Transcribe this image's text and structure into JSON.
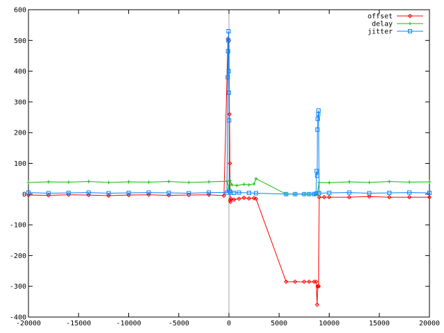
{
  "chart_data": {
    "type": "line",
    "title": "",
    "xlabel": "",
    "ylabel": "",
    "xlim": [
      -20000,
      20000
    ],
    "ylim": [
      -400,
      600
    ],
    "x_ticks": [
      -20000,
      -15000,
      -10000,
      -5000,
      0,
      5000,
      10000,
      15000,
      20000
    ],
    "y_ticks": [
      -400,
      -300,
      -200,
      -100,
      0,
      100,
      200,
      300,
      400,
      500,
      600
    ],
    "x_tick_labels": [
      "-20000",
      "-15000",
      "-10000",
      "-5000",
      "0",
      "5000",
      "10000",
      "15000",
      "20000"
    ],
    "y_tick_labels": [
      "-400",
      "-300",
      "-200",
      "-100",
      "0",
      "100",
      "200",
      "300",
      "400",
      "500",
      "600"
    ],
    "grid": false,
    "zero_axis_x": 0,
    "legend_position": "top-right",
    "series": [
      {
        "name": "offset",
        "color": "#ff0000",
        "marker": "diamond",
        "x": [
          -20000,
          -18000,
          -16000,
          -14000,
          -12000,
          -10000,
          -8000,
          -6000,
          -4000,
          -2000,
          -500,
          -100,
          0,
          50,
          100,
          120,
          150,
          200,
          500,
          1000,
          1500,
          2000,
          2500,
          2700,
          5700,
          6600,
          7500,
          8000,
          8500,
          8700,
          8800,
          8850,
          8900,
          8950,
          9000,
          9500,
          10000,
          12000,
          14000,
          16000,
          18000,
          20000
        ],
        "y": [
          -3,
          -4,
          -2,
          -3,
          -5,
          -3,
          -2,
          -4,
          -3,
          -2,
          -5,
          505,
          500,
          260,
          100,
          -20,
          -25,
          -15,
          -18,
          -15,
          -12,
          -14,
          -13,
          -15,
          -285,
          -285,
          -285,
          -285,
          -285,
          -285,
          -360,
          -300,
          -300,
          -300,
          -10,
          -10,
          -10,
          -10,
          -8,
          -10,
          -10,
          -10
        ]
      },
      {
        "name": "delay",
        "color": "#00c000",
        "marker": "plus",
        "x": [
          -20000,
          -18000,
          -16000,
          -14000,
          -12000,
          -10000,
          -8000,
          -6000,
          -4000,
          -2000,
          -200,
          0,
          100,
          300,
          800,
          1500,
          2000,
          2500,
          2700,
          5700,
          6600,
          7500,
          8000,
          8500,
          8800,
          9000,
          10000,
          12000,
          14000,
          16000,
          18000,
          20000
        ],
        "y": [
          38,
          40,
          39,
          41,
          38,
          40,
          39,
          41,
          38,
          40,
          42,
          20,
          45,
          30,
          28,
          32,
          30,
          33,
          50,
          0,
          0,
          0,
          0,
          0,
          0,
          38,
          37,
          40,
          38,
          41,
          39,
          40
        ]
      },
      {
        "name": "jitter",
        "color": "#0080ff",
        "marker": "square",
        "x": [
          -20000,
          -18000,
          -16000,
          -14000,
          -12000,
          -10000,
          -8000,
          -6000,
          -4000,
          -2000,
          -200,
          -120,
          -90,
          -60,
          -40,
          -20,
          0,
          20,
          60,
          150,
          500,
          1000,
          2000,
          2700,
          5700,
          6600,
          7500,
          8000,
          8500,
          8700,
          8750,
          8800,
          8820,
          8860,
          8900,
          8940,
          9000,
          10000,
          12000,
          14000,
          16000,
          18000,
          20000
        ],
        "y": [
          5,
          3,
          4,
          5,
          3,
          4,
          5,
          4,
          3,
          5,
          5,
          380,
          465,
          500,
          530,
          400,
          330,
          240,
          10,
          5,
          4,
          5,
          4,
          3,
          0,
          0,
          0,
          0,
          0,
          2,
          75,
          60,
          210,
          245,
          260,
          272,
          3,
          4,
          5,
          3,
          4,
          5,
          4
        ]
      }
    ]
  }
}
